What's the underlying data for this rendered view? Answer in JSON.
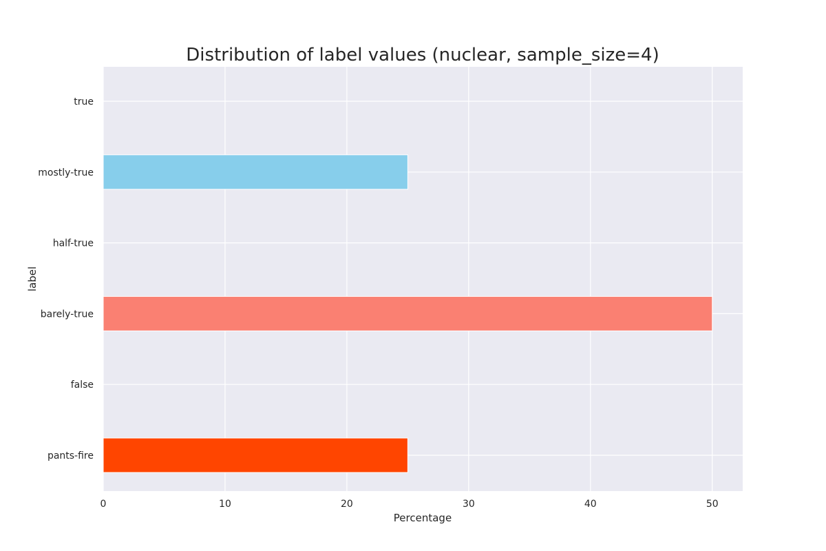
{
  "chart_data": {
    "type": "bar",
    "orientation": "horizontal",
    "title": "Distribution of label values (nuclear, sample_size=4)",
    "xlabel": "Percentage",
    "ylabel": "label",
    "categories": [
      "true",
      "mostly-true",
      "half-true",
      "barely-true",
      "false",
      "pants-fire"
    ],
    "values": [
      0,
      25,
      0,
      50,
      0,
      25
    ],
    "bar_colors": [
      "#4169E1",
      "#87CEEB",
      "#D3D3D3",
      "#FA8072",
      "#FF6347",
      "#FF4500"
    ],
    "xlim": [
      0,
      52.5
    ],
    "xticks": [
      0,
      10,
      20,
      30,
      40,
      50
    ],
    "grid": true,
    "background": "#EAEAF2",
    "grid_color": "#FFFFFF"
  }
}
